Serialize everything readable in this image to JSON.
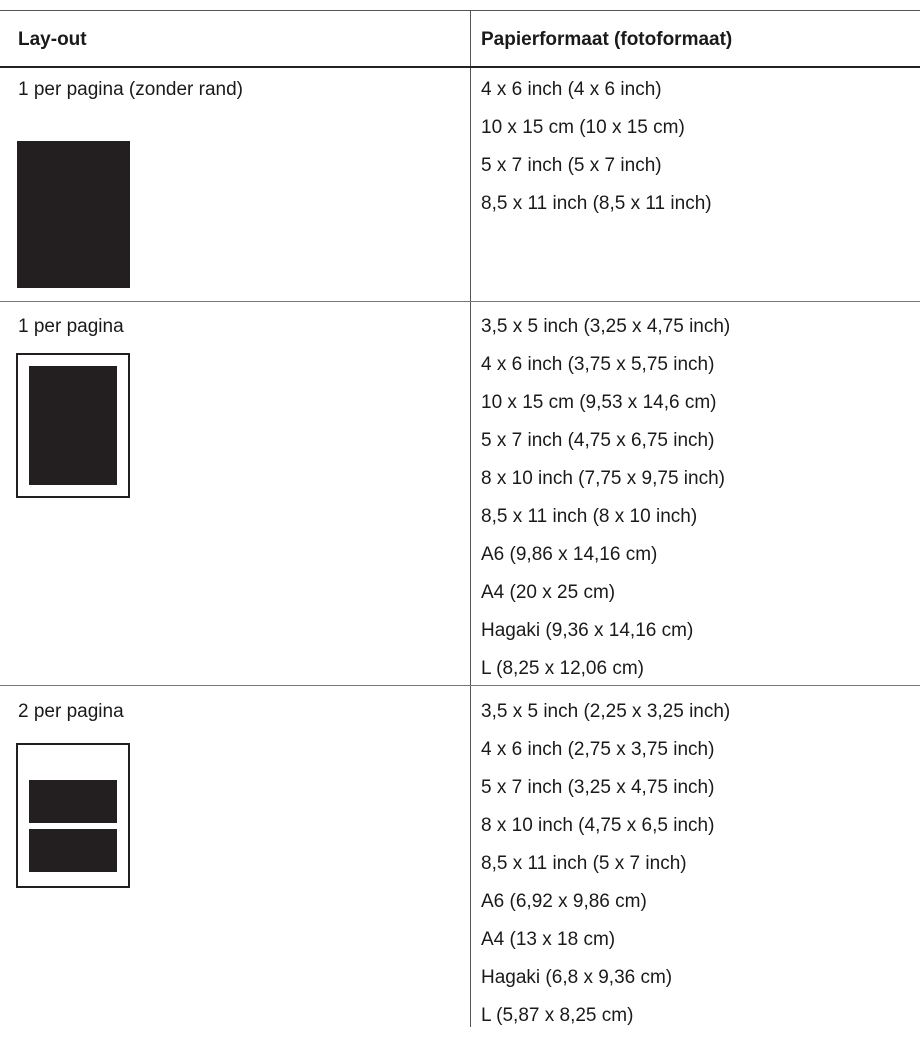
{
  "table": {
    "headers": {
      "layout": "Lay-out",
      "paper_size": "Papierformaat (fotoformaat)"
    },
    "rows": [
      {
        "layout": "1 per pagina (zonder rand)",
        "thumbnail": "borderless-one-photo-icon",
        "sizes": [
          "4 x 6 inch (4 x 6 inch)",
          "10 x 15 cm (10 x 15 cm)",
          "5 x 7 inch (5 x 7 inch)",
          "8,5 x 11 inch (8,5 x 11 inch)"
        ]
      },
      {
        "layout": "1 per pagina",
        "thumbnail": "bordered-one-photo-icon",
        "sizes": [
          "3,5 x 5 inch (3,25 x 4,75 inch)",
          "4 x 6 inch (3,75 x 5,75 inch)",
          "10 x 15 cm (9,53 x 14,6 cm)",
          "5 x 7 inch (4,75 x 6,75 inch)",
          "8 x 10 inch (7,75 x 9,75 inch)",
          "8,5 x 11 inch (8 x 10 inch)",
          "A6 (9,86 x 14,16 cm)",
          "A4 (20 x 25 cm)",
          "Hagaki (9,36 x 14,16 cm)",
          "L (8,25 x 12,06 cm)"
        ]
      },
      {
        "layout": "2 per pagina",
        "thumbnail": "two-photos-icon",
        "sizes": [
          "3,5 x 5 inch (2,25 x 3,25 inch)",
          "4 x 6 inch (2,75 x 3,75 inch)",
          "5 x 7 inch (3,25 x 4,75 inch)",
          "8 x 10 inch (4,75 x 6,5 inch)",
          "8,5 x 11 inch (5 x 7 inch)",
          "A6 (6,92 x 9,86 cm)",
          "A4 (13 x 18 cm)",
          "Hagaki (6,8 x 9,36 cm)",
          "L (5,87 x 8,25 cm)"
        ]
      }
    ]
  },
  "colors": {
    "thumbnail_fill": "#231f20",
    "rule": "#555555",
    "text": "#1a1a1a"
  }
}
